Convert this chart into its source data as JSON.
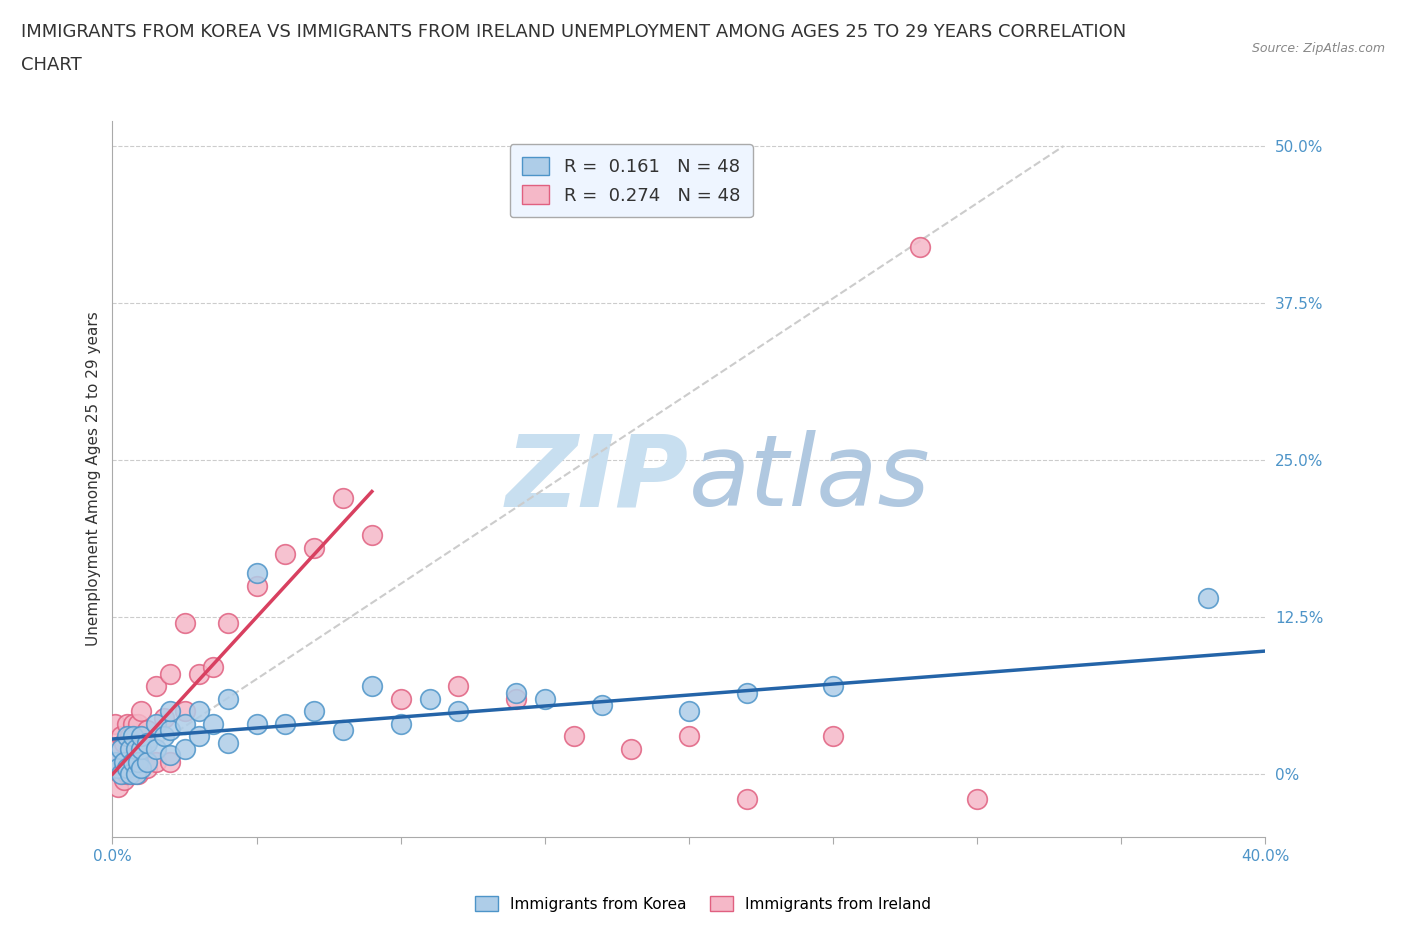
{
  "title_line1": "IMMIGRANTS FROM KOREA VS IMMIGRANTS FROM IRELAND UNEMPLOYMENT AMONG AGES 25 TO 29 YEARS CORRELATION",
  "title_line2": "CHART",
  "source_text": "Source: ZipAtlas.com",
  "ylabel": "Unemployment Among Ages 25 to 29 years",
  "xlim": [
    0.0,
    0.4
  ],
  "ylim": [
    -0.05,
    0.52
  ],
  "xticks": [
    0.0,
    0.05,
    0.1,
    0.15,
    0.2,
    0.25,
    0.3,
    0.35,
    0.4
  ],
  "ytick_labels_right": [
    "0%",
    "12.5%",
    "25.0%",
    "37.5%",
    "50.0%"
  ],
  "ytick_positions": [
    0.0,
    0.125,
    0.25,
    0.375,
    0.5
  ],
  "korea_color": "#aecde8",
  "ireland_color": "#f5b8c8",
  "korea_edge_color": "#4d94c8",
  "ireland_edge_color": "#e06080",
  "trend_korea_color": "#2464a8",
  "trend_ireland_color": "#d84060",
  "diag_line_color": "#cccccc",
  "watermark_zip_color": "#c8dff0",
  "watermark_atlas_color": "#b0c8e0",
  "legend_box_color": "#eef5ff",
  "legend_border_color": "#aaaaaa",
  "r_korea": 0.161,
  "n_korea": 48,
  "r_ireland": 0.274,
  "n_ireland": 48,
  "title_fontsize": 13,
  "axis_label_fontsize": 11,
  "tick_fontsize": 11,
  "legend_fontsize": 13,
  "korea_trend_x0": 0.0,
  "korea_trend_y0": 0.028,
  "korea_trend_x1": 0.4,
  "korea_trend_y1": 0.098,
  "ireland_trend_x0": 0.0,
  "ireland_trend_y0": 0.0,
  "ireland_trend_x1": 0.09,
  "ireland_trend_y1": 0.225,
  "korea_scatter_x": [
    0.001,
    0.002,
    0.003,
    0.003,
    0.004,
    0.005,
    0.005,
    0.006,
    0.006,
    0.007,
    0.007,
    0.008,
    0.008,
    0.009,
    0.01,
    0.01,
    0.01,
    0.012,
    0.012,
    0.015,
    0.015,
    0.018,
    0.02,
    0.02,
    0.02,
    0.025,
    0.025,
    0.03,
    0.03,
    0.035,
    0.04,
    0.04,
    0.05,
    0.05,
    0.06,
    0.07,
    0.08,
    0.09,
    0.1,
    0.11,
    0.12,
    0.14,
    0.15,
    0.17,
    0.2,
    0.22,
    0.25,
    0.38
  ],
  "korea_scatter_y": [
    0.01,
    0.005,
    0.0,
    0.02,
    0.01,
    0.005,
    0.03,
    0.0,
    0.02,
    0.01,
    0.03,
    0.0,
    0.02,
    0.01,
    0.005,
    0.02,
    0.03,
    0.01,
    0.025,
    0.02,
    0.04,
    0.03,
    0.015,
    0.035,
    0.05,
    0.02,
    0.04,
    0.03,
    0.05,
    0.04,
    0.025,
    0.06,
    0.04,
    0.16,
    0.04,
    0.05,
    0.035,
    0.07,
    0.04,
    0.06,
    0.05,
    0.065,
    0.06,
    0.055,
    0.05,
    0.065,
    0.07,
    0.14
  ],
  "ireland_scatter_x": [
    0.001,
    0.001,
    0.001,
    0.002,
    0.002,
    0.003,
    0.003,
    0.004,
    0.004,
    0.005,
    0.005,
    0.006,
    0.006,
    0.007,
    0.007,
    0.008,
    0.008,
    0.009,
    0.009,
    0.01,
    0.01,
    0.012,
    0.012,
    0.015,
    0.015,
    0.018,
    0.02,
    0.02,
    0.025,
    0.025,
    0.03,
    0.035,
    0.04,
    0.05,
    0.06,
    0.07,
    0.08,
    0.09,
    0.1,
    0.12,
    0.14,
    0.16,
    0.18,
    0.2,
    0.22,
    0.25,
    0.28,
    0.3
  ],
  "ireland_scatter_y": [
    0.005,
    0.02,
    0.04,
    -0.01,
    0.01,
    0.005,
    0.03,
    -0.005,
    0.025,
    0.0,
    0.04,
    0.005,
    0.03,
    0.0,
    0.04,
    0.005,
    0.03,
    0.0,
    0.04,
    0.01,
    0.05,
    0.005,
    0.035,
    0.01,
    0.07,
    0.045,
    0.01,
    0.08,
    0.05,
    0.12,
    0.08,
    0.085,
    0.12,
    0.15,
    0.175,
    0.18,
    0.22,
    0.19,
    0.06,
    0.07,
    0.06,
    0.03,
    0.02,
    0.03,
    -0.02,
    0.03,
    0.42,
    -0.02
  ]
}
